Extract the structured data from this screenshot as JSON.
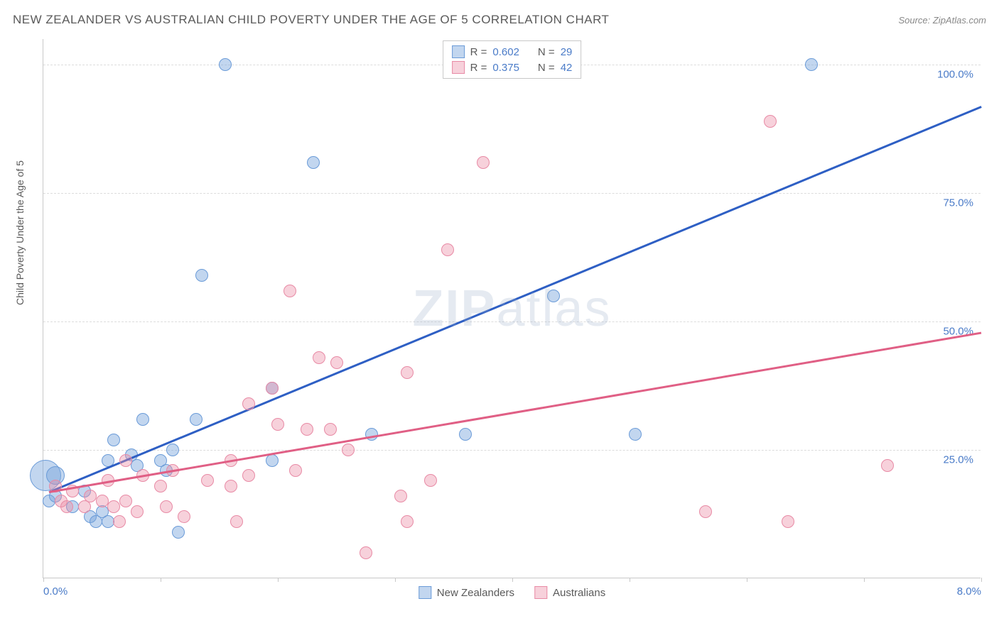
{
  "title": "NEW ZEALANDER VS AUSTRALIAN CHILD POVERTY UNDER THE AGE OF 5 CORRELATION CHART",
  "source": "Source: ZipAtlas.com",
  "watermark_bold": "ZIP",
  "watermark_light": "atlas",
  "y_axis_label": "Child Poverty Under the Age of 5",
  "chart": {
    "type": "scatter",
    "xlim": [
      0,
      8
    ],
    "ylim": [
      0,
      105
    ],
    "x_ticks": [
      0,
      1,
      2,
      3,
      4,
      5,
      6,
      7,
      8
    ],
    "x_tick_labels": {
      "0": "0.0%",
      "8": "8.0%"
    },
    "y_gridlines": [
      25,
      50,
      75,
      100
    ],
    "y_tick_labels": {
      "25": "25.0%",
      "50": "50.0%",
      "75": "75.0%",
      "100": "100.0%"
    },
    "background_color": "#ffffff",
    "grid_color": "#dcdcdc",
    "axis_color": "#c8c8c8",
    "tick_label_color": "#4a7bc8",
    "axis_label_color": "#5a5a5a",
    "series": [
      {
        "name": "New Zealanders",
        "fill_color": "rgba(120,165,220,0.45)",
        "stroke_color": "#6a9bd8",
        "trend_color": "#2e5fc4",
        "marker_radius": 9,
        "R": "0.602",
        "N": "29",
        "trend": {
          "x1": 0.05,
          "y1": 17,
          "x2": 8.0,
          "y2": 92
        },
        "points": [
          {
            "x": 0.02,
            "y": 20,
            "r": 22
          },
          {
            "x": 0.1,
            "y": 20,
            "r": 13
          },
          {
            "x": 0.05,
            "y": 15
          },
          {
            "x": 0.1,
            "y": 16
          },
          {
            "x": 0.25,
            "y": 14
          },
          {
            "x": 0.35,
            "y": 17
          },
          {
            "x": 0.4,
            "y": 12
          },
          {
            "x": 0.45,
            "y": 11
          },
          {
            "x": 0.5,
            "y": 13
          },
          {
            "x": 0.55,
            "y": 11
          },
          {
            "x": 0.55,
            "y": 23
          },
          {
            "x": 0.6,
            "y": 27
          },
          {
            "x": 0.75,
            "y": 24
          },
          {
            "x": 0.8,
            "y": 22
          },
          {
            "x": 0.85,
            "y": 31
          },
          {
            "x": 1.0,
            "y": 23
          },
          {
            "x": 1.05,
            "y": 21
          },
          {
            "x": 1.1,
            "y": 25
          },
          {
            "x": 1.15,
            "y": 9
          },
          {
            "x": 1.3,
            "y": 31
          },
          {
            "x": 1.35,
            "y": 59
          },
          {
            "x": 1.55,
            "y": 100
          },
          {
            "x": 1.95,
            "y": 37
          },
          {
            "x": 1.95,
            "y": 23
          },
          {
            "x": 2.3,
            "y": 81
          },
          {
            "x": 2.8,
            "y": 28
          },
          {
            "x": 3.6,
            "y": 28
          },
          {
            "x": 4.35,
            "y": 55
          },
          {
            "x": 5.05,
            "y": 28
          },
          {
            "x": 6.55,
            "y": 100
          }
        ]
      },
      {
        "name": "Australians",
        "fill_color": "rgba(235,140,165,0.40)",
        "stroke_color": "#e88aa5",
        "trend_color": "#e05f85",
        "marker_radius": 9,
        "R": "0.375",
        "N": "42",
        "trend": {
          "x1": 0.05,
          "y1": 17,
          "x2": 8.0,
          "y2": 48
        },
        "points": [
          {
            "x": 0.1,
            "y": 18
          },
          {
            "x": 0.15,
            "y": 15
          },
          {
            "x": 0.2,
            "y": 14
          },
          {
            "x": 0.25,
            "y": 17
          },
          {
            "x": 0.35,
            "y": 14
          },
          {
            "x": 0.4,
            "y": 16
          },
          {
            "x": 0.5,
            "y": 15
          },
          {
            "x": 0.55,
            "y": 19
          },
          {
            "x": 0.6,
            "y": 14
          },
          {
            "x": 0.65,
            "y": 11
          },
          {
            "x": 0.7,
            "y": 23
          },
          {
            "x": 0.7,
            "y": 15
          },
          {
            "x": 0.8,
            "y": 13
          },
          {
            "x": 0.85,
            "y": 20
          },
          {
            "x": 1.0,
            "y": 18
          },
          {
            "x": 1.05,
            "y": 14
          },
          {
            "x": 1.1,
            "y": 21
          },
          {
            "x": 1.2,
            "y": 12
          },
          {
            "x": 1.4,
            "y": 19
          },
          {
            "x": 1.6,
            "y": 23
          },
          {
            "x": 1.6,
            "y": 18
          },
          {
            "x": 1.65,
            "y": 11
          },
          {
            "x": 1.75,
            "y": 34
          },
          {
            "x": 1.75,
            "y": 20
          },
          {
            "x": 1.95,
            "y": 37
          },
          {
            "x": 2.0,
            "y": 30
          },
          {
            "x": 2.1,
            "y": 56
          },
          {
            "x": 2.15,
            "y": 21
          },
          {
            "x": 2.25,
            "y": 29
          },
          {
            "x": 2.35,
            "y": 43
          },
          {
            "x": 2.45,
            "y": 29
          },
          {
            "x": 2.5,
            "y": 42
          },
          {
            "x": 2.6,
            "y": 25
          },
          {
            "x": 2.75,
            "y": 5
          },
          {
            "x": 3.05,
            "y": 16
          },
          {
            "x": 3.1,
            "y": 40
          },
          {
            "x": 3.1,
            "y": 11
          },
          {
            "x": 3.45,
            "y": 64
          },
          {
            "x": 3.3,
            "y": 19
          },
          {
            "x": 3.75,
            "y": 81
          },
          {
            "x": 5.65,
            "y": 13
          },
          {
            "x": 6.2,
            "y": 89
          },
          {
            "x": 6.35,
            "y": 11
          },
          {
            "x": 7.2,
            "y": 22
          }
        ]
      }
    ]
  },
  "legend_bottom": [
    {
      "label": "New Zealanders",
      "fill": "rgba(120,165,220,0.45)",
      "stroke": "#6a9bd8"
    },
    {
      "label": "Australians",
      "fill": "rgba(235,140,165,0.40)",
      "stroke": "#e88aa5"
    }
  ]
}
